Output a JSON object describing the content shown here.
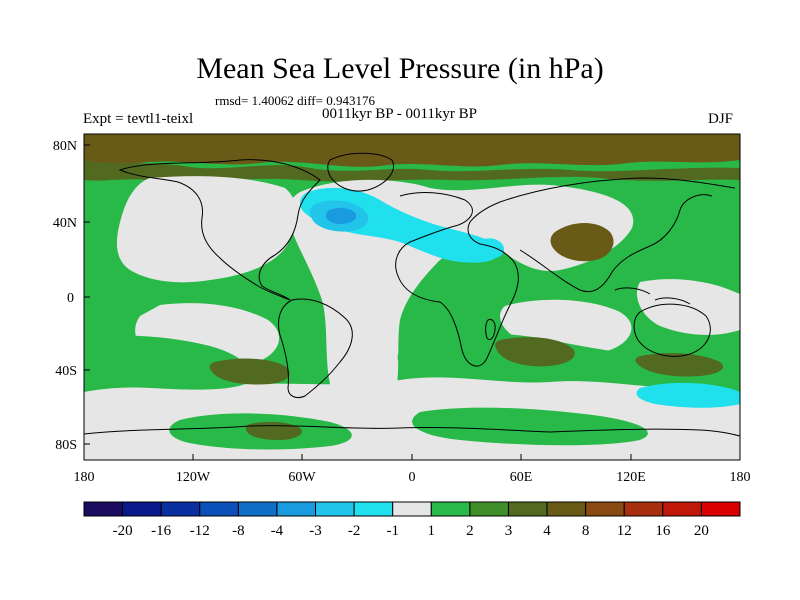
{
  "header": {
    "title": "Mean Sea Level Pressure (in hPa)",
    "stats": "rmsd= 1.40062 diff= 0.943176",
    "period": "0011kyr BP - 0011kyr BP",
    "experiment": "Expt = tevtl1-teixl",
    "season": "DJF"
  },
  "axes": {
    "lat_labels": [
      "80N",
      "40N",
      "0",
      "40S",
      "80S"
    ],
    "lon_labels": [
      "180",
      "120W",
      "60W",
      "0",
      "60E",
      "120E",
      "180"
    ]
  },
  "colorbar": {
    "labels": [
      "-20",
      "-16",
      "-12",
      "-8",
      "-4",
      "-3",
      "-2",
      "-1",
      "1",
      "2",
      "3",
      "4",
      "8",
      "12",
      "16",
      "20"
    ],
    "colors": [
      "#1a0b5e",
      "#0a1a8c",
      "#0a2fa0",
      "#0b50b8",
      "#1070c8",
      "#1a9be0",
      "#22c4ea",
      "#20e0ee",
      "#e6e6e6",
      "#28b948",
      "#3e8f2a",
      "#526a20",
      "#6a5a18",
      "#8a4a14",
      "#a83010",
      "#c01808",
      "#d80000"
    ]
  },
  "field_colors": {
    "zero": "#e6e6e6",
    "green": "#28b948",
    "olive": "#526a20",
    "brown": "#6a5a18",
    "cyan": "#20e0ee",
    "sky": "#22c4ea",
    "blue": "#1a9be0"
  }
}
